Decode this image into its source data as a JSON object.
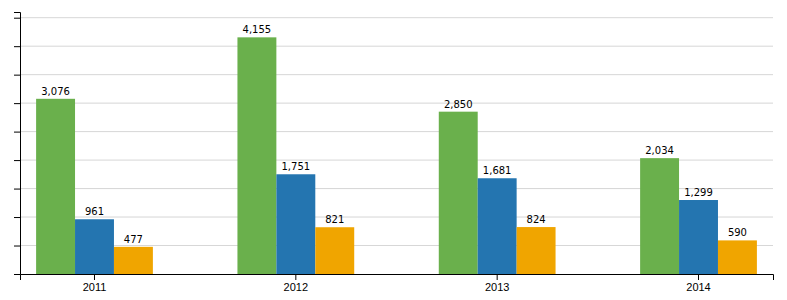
{
  "chart_data": {
    "type": "bar",
    "categories": [
      "2011",
      "2012",
      "2013",
      "2014"
    ],
    "series": [
      {
        "color": "#6ab04c",
        "values": [
          3076,
          4155,
          2850,
          2034
        ],
        "value_labels": [
          "3,076",
          "4,155",
          "2,850",
          "2,034"
        ]
      },
      {
        "color": "#2475b0",
        "values": [
          961,
          1751,
          1681,
          1299
        ],
        "value_labels": [
          "961",
          "1,751",
          "1,681",
          "1,299"
        ]
      },
      {
        "color": "#f0a500",
        "values": [
          477,
          821,
          824,
          590
        ],
        "value_labels": [
          "477",
          "821",
          "824",
          "590"
        ]
      }
    ],
    "ylim": [
      0,
      4600
    ],
    "yticks": [
      500,
      1000,
      1500,
      2000,
      2500,
      3000,
      3500,
      4000,
      4500
    ],
    "grid": true,
    "data_labels": true,
    "tick_labels": "x"
  }
}
